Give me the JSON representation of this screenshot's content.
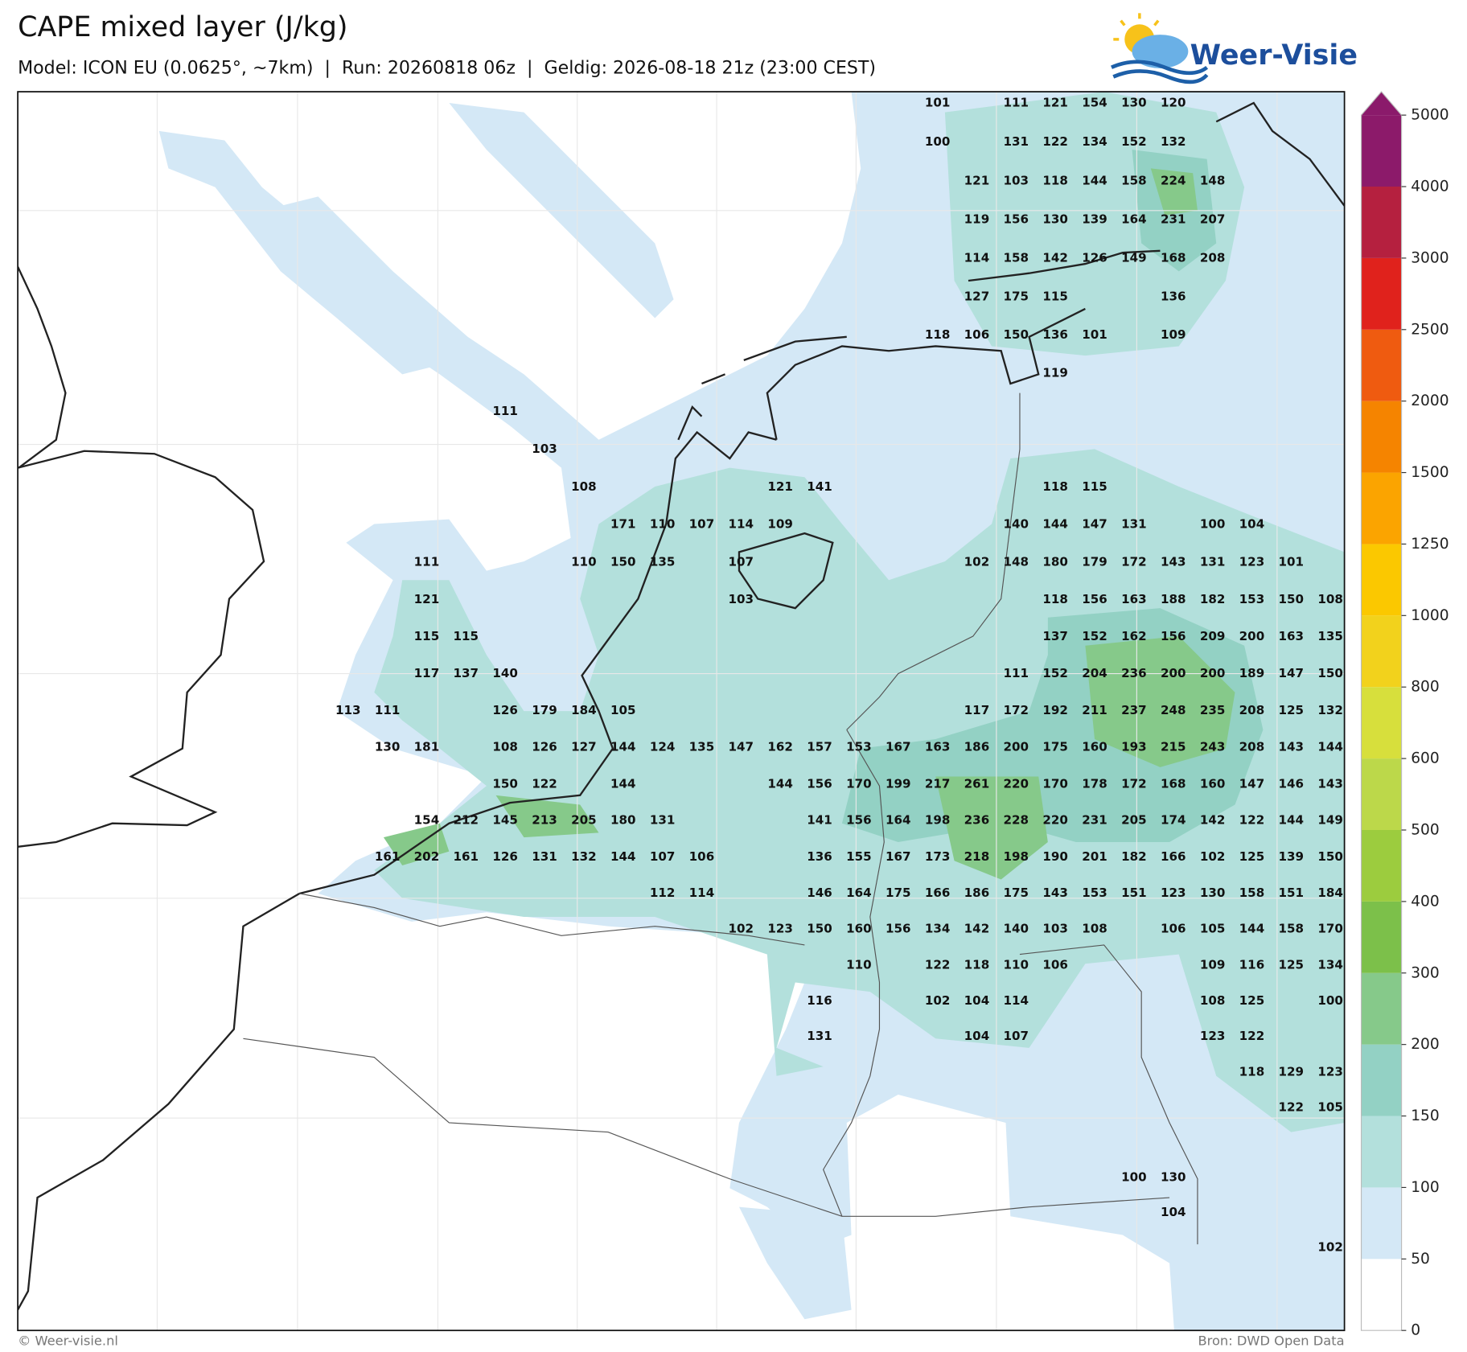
{
  "header": {
    "title": "CAPE mixed layer (J/kg)",
    "subtitle": "Model: ICON EU (0.0625°, ~7km)  |  Run: 20260818 06z  |  Geldig: 2026-08-18 21z (23:00 CEST)"
  },
  "logo": {
    "text": "Weer-Visie"
  },
  "map": {
    "grid": [
      [
        null,
        null,
        null,
        null,
        null,
        null,
        null,
        null,
        null,
        null,
        null,
        null,
        null,
        null,
        null,
        101,
        null,
        111,
        121,
        154,
        130,
        120,
        null,
        null,
        null,
        null
      ],
      [
        null,
        null,
        null,
        null,
        null,
        null,
        null,
        null,
        null,
        null,
        null,
        null,
        null,
        null,
        null,
        100,
        null,
        131,
        122,
        134,
        152,
        132,
        null,
        null,
        null,
        null
      ],
      [
        null,
        null,
        null,
        null,
        null,
        null,
        null,
        null,
        null,
        null,
        null,
        null,
        null,
        null,
        null,
        null,
        121,
        103,
        118,
        144,
        158,
        224,
        148,
        null,
        null,
        null
      ],
      [
        null,
        null,
        null,
        null,
        null,
        null,
        null,
        null,
        null,
        null,
        null,
        null,
        null,
        null,
        null,
        null,
        119,
        156,
        130,
        139,
        164,
        231,
        207,
        null,
        null,
        null
      ],
      [
        null,
        null,
        null,
        null,
        null,
        null,
        null,
        null,
        null,
        null,
        null,
        null,
        null,
        null,
        null,
        null,
        114,
        158,
        142,
        126,
        149,
        168,
        208,
        null,
        null,
        null
      ],
      [
        null,
        null,
        null,
        null,
        null,
        null,
        null,
        null,
        null,
        null,
        null,
        null,
        null,
        null,
        null,
        null,
        127,
        175,
        115,
        null,
        null,
        136,
        null,
        null,
        null,
        null
      ],
      [
        null,
        null,
        null,
        null,
        null,
        null,
        null,
        null,
        null,
        null,
        null,
        null,
        null,
        null,
        null,
        118,
        106,
        150,
        136,
        101,
        null,
        109,
        null,
        null,
        null,
        null
      ],
      [
        null,
        null,
        null,
        null,
        null,
        null,
        null,
        null,
        null,
        null,
        null,
        null,
        null,
        null,
        null,
        null,
        null,
        null,
        119,
        null,
        null,
        null,
        null,
        null,
        null,
        null
      ],
      [
        null,
        null,
        null,
        null,
        111,
        null,
        null,
        null,
        null,
        null,
        null,
        null,
        null,
        null,
        null,
        null,
        null,
        null,
        null,
        null,
        null,
        null,
        null,
        null,
        null,
        null
      ],
      [
        null,
        null,
        null,
        null,
        null,
        103,
        null,
        null,
        null,
        null,
        null,
        null,
        null,
        null,
        null,
        null,
        null,
        null,
        null,
        null,
        null,
        null,
        null,
        null,
        null,
        null
      ],
      [
        null,
        null,
        null,
        null,
        null,
        null,
        108,
        null,
        null,
        null,
        null,
        121,
        141,
        null,
        null,
        null,
        null,
        null,
        118,
        115,
        null,
        null,
        null,
        null,
        null,
        null
      ],
      [
        null,
        null,
        null,
        null,
        null,
        null,
        null,
        171,
        110,
        107,
        114,
        109,
        null,
        null,
        null,
        null,
        null,
        140,
        144,
        147,
        131,
        null,
        100,
        104,
        null,
        null
      ],
      [
        null,
        null,
        111,
        null,
        null,
        null,
        110,
        150,
        135,
        null,
        107,
        null,
        null,
        null,
        null,
        null,
        102,
        148,
        180,
        179,
        172,
        143,
        131,
        123,
        101,
        null
      ],
      [
        null,
        null,
        121,
        null,
        null,
        null,
        null,
        null,
        null,
        null,
        103,
        null,
        null,
        null,
        null,
        null,
        null,
        null,
        118,
        156,
        163,
        188,
        182,
        153,
        150,
        108
      ],
      [
        null,
        null,
        115,
        115,
        null,
        null,
        null,
        null,
        null,
        null,
        null,
        null,
        null,
        null,
        null,
        null,
        null,
        null,
        137,
        152,
        162,
        156,
        209,
        200,
        163,
        135
      ],
      [
        null,
        null,
        117,
        137,
        140,
        null,
        null,
        null,
        null,
        null,
        null,
        null,
        null,
        null,
        null,
        null,
        null,
        111,
        152,
        204,
        236,
        200,
        200,
        189,
        147,
        150
      ],
      [
        113,
        111,
        null,
        null,
        126,
        179,
        184,
        105,
        null,
        null,
        null,
        null,
        null,
        null,
        null,
        null,
        117,
        172,
        192,
        211,
        237,
        248,
        235,
        208,
        125,
        132
      ],
      [
        null,
        130,
        181,
        null,
        108,
        126,
        127,
        144,
        124,
        135,
        147,
        162,
        157,
        153,
        167,
        163,
        186,
        200,
        175,
        160,
        193,
        215,
        243,
        208,
        143,
        144
      ],
      [
        null,
        null,
        null,
        null,
        150,
        122,
        null,
        144,
        null,
        null,
        null,
        144,
        156,
        170,
        199,
        217,
        261,
        220,
        170,
        178,
        172,
        168,
        160,
        147,
        146,
        143
      ],
      [
        null,
        null,
        154,
        212,
        145,
        213,
        205,
        180,
        131,
        null,
        null,
        null,
        141,
        156,
        164,
        198,
        236,
        228,
        220,
        231,
        205,
        174,
        142,
        122,
        144,
        149
      ],
      [
        null,
        161,
        202,
        161,
        126,
        131,
        132,
        144,
        107,
        106,
        null,
        null,
        136,
        155,
        167,
        173,
        218,
        198,
        190,
        201,
        182,
        166,
        102,
        125,
        139,
        150
      ],
      [
        null,
        null,
        null,
        null,
        null,
        null,
        null,
        null,
        112,
        114,
        null,
        null,
        146,
        164,
        175,
        166,
        186,
        175,
        143,
        153,
        151,
        123,
        130,
        158,
        151,
        184
      ],
      [
        null,
        null,
        null,
        null,
        null,
        null,
        null,
        null,
        null,
        null,
        102,
        123,
        150,
        160,
        156,
        134,
        142,
        140,
        103,
        108,
        null,
        106,
        105,
        144,
        158,
        170
      ],
      [
        null,
        null,
        null,
        null,
        null,
        null,
        null,
        null,
        null,
        null,
        null,
        null,
        null,
        110,
        null,
        122,
        118,
        110,
        106,
        null,
        null,
        null,
        109,
        116,
        125,
        134
      ],
      [
        null,
        null,
        null,
        null,
        null,
        null,
        null,
        null,
        null,
        null,
        null,
        null,
        116,
        null,
        null,
        102,
        104,
        114,
        null,
        null,
        null,
        null,
        108,
        125,
        null,
        100
      ],
      [
        null,
        null,
        null,
        null,
        null,
        null,
        null,
        null,
        null,
        null,
        null,
        null,
        131,
        null,
        null,
        null,
        104,
        107,
        null,
        null,
        null,
        null,
        123,
        122,
        null,
        null
      ],
      [
        null,
        null,
        null,
        null,
        null,
        null,
        null,
        null,
        null,
        null,
        null,
        null,
        null,
        null,
        null,
        null,
        null,
        null,
        null,
        null,
        null,
        null,
        null,
        118,
        129,
        123
      ],
      [
        null,
        null,
        null,
        null,
        null,
        null,
        null,
        null,
        null,
        null,
        null,
        null,
        null,
        null,
        null,
        null,
        null,
        null,
        null,
        null,
        null,
        null,
        null,
        null,
        122,
        105
      ],
      [
        null,
        null,
        null,
        null,
        null,
        null,
        null,
        null,
        null,
        null,
        null,
        null,
        null,
        null,
        null,
        null,
        null,
        null,
        null,
        null,
        null,
        null,
        null,
        null,
        null,
        null
      ],
      [
        null,
        null,
        null,
        null,
        null,
        null,
        null,
        null,
        null,
        null,
        null,
        null,
        null,
        null,
        null,
        null,
        null,
        null,
        null,
        null,
        100,
        130,
        null,
        null,
        null,
        null
      ],
      [
        null,
        null,
        null,
        null,
        null,
        null,
        null,
        null,
        null,
        null,
        null,
        null,
        null,
        null,
        null,
        null,
        null,
        null,
        null,
        null,
        null,
        104,
        null,
        null,
        null,
        null
      ],
      [
        null,
        null,
        null,
        null,
        null,
        null,
        null,
        null,
        null,
        null,
        null,
        null,
        null,
        null,
        null,
        null,
        null,
        null,
        null,
        null,
        null,
        null,
        null,
        null,
        null,
        102
      ]
    ]
  },
  "colorbar": {
    "levels": [
      0,
      50,
      100,
      150,
      200,
      300,
      400,
      500,
      600,
      800,
      1000,
      1250,
      1500,
      2000,
      2500,
      3000,
      4000,
      5000
    ],
    "colors": [
      "#ffffff",
      "#d4e8f6",
      "#b3e0dc",
      "#93d1c4",
      "#86c98a",
      "#7cc04a",
      "#9ccc3e",
      "#bcd84a",
      "#d7df3c",
      "#f2d21c",
      "#fbc800",
      "#fba400",
      "#f58400",
      "#ef5b10",
      "#e0221c",
      "#b5203f",
      "#8c1a6a"
    ],
    "extend_color": "#8b1a6b"
  },
  "footer": {
    "left": "© Weer-visie.nl",
    "right": "Bron: DWD Open Data"
  }
}
